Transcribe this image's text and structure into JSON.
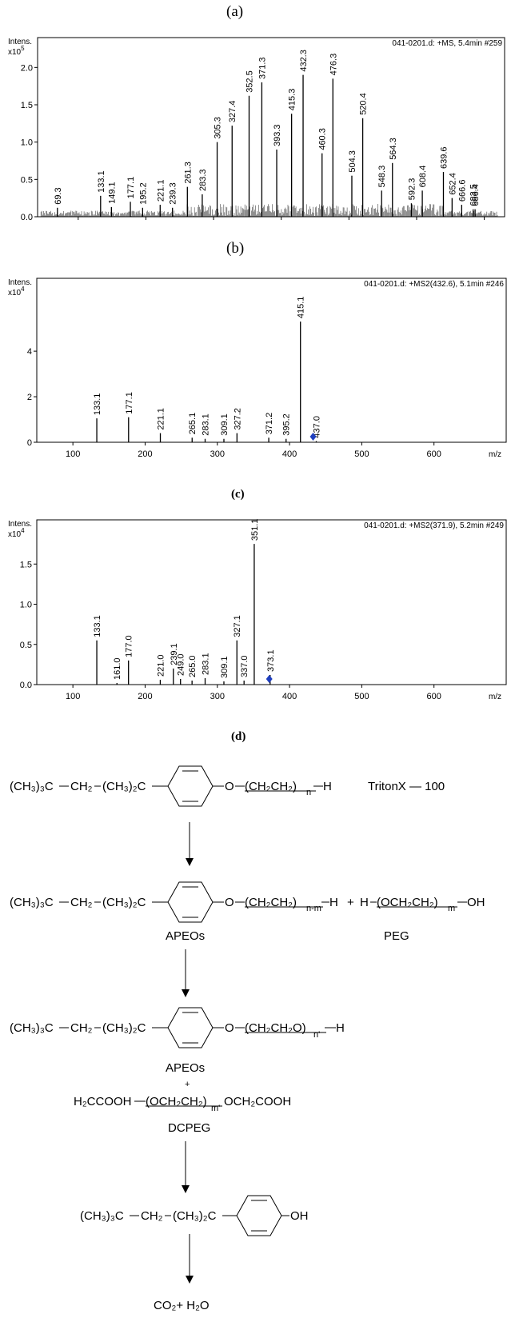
{
  "labels": {
    "a": "(a)",
    "b": "(b)",
    "c": "(c)",
    "d": "(d)"
  },
  "chart_data": [
    {
      "type": "bar",
      "panel": "a",
      "header": "041-0201.d: +MS, 5.4min #259",
      "ylabel": "Intens.",
      "yexp_base": "x10",
      "yexp_power": "5",
      "xlim": [
        40,
        730
      ],
      "ylim": [
        0,
        2.4
      ],
      "yticks": [
        0.0,
        0.5,
        1.0,
        1.5,
        2.0
      ],
      "xtick_values": [
        100,
        200,
        300,
        400,
        500,
        600,
        700
      ],
      "xticks_printed": false,
      "peaks": [
        {
          "mz": 69.3,
          "i": 0.12,
          "label": "69.3"
        },
        {
          "mz": 133.1,
          "i": 0.28,
          "label": "133.1"
        },
        {
          "mz": 149.1,
          "i": 0.13,
          "label": "149.1"
        },
        {
          "mz": 177.1,
          "i": 0.2,
          "label": "177.1"
        },
        {
          "mz": 195.2,
          "i": 0.12,
          "label": "195.2"
        },
        {
          "mz": 221.1,
          "i": 0.16,
          "label": "221.1"
        },
        {
          "mz": 239.3,
          "i": 0.12,
          "label": "239.3"
        },
        {
          "mz": 261.3,
          "i": 0.4,
          "label": "261.3"
        },
        {
          "mz": 283.3,
          "i": 0.3,
          "label": "283.3"
        },
        {
          "mz": 305.3,
          "i": 1.0,
          "label": "305.3"
        },
        {
          "mz": 327.4,
          "i": 1.22,
          "label": "327.4"
        },
        {
          "mz": 352.5,
          "i": 1.62,
          "label": "352.5"
        },
        {
          "mz": 371.3,
          "i": 1.8,
          "label": "371.3"
        },
        {
          "mz": 393.3,
          "i": 0.9,
          "label": "393.3"
        },
        {
          "mz": 415.3,
          "i": 1.38,
          "label": "415.3"
        },
        {
          "mz": 432.3,
          "i": 1.9,
          "label": "432.3"
        },
        {
          "mz": 460.3,
          "i": 0.85,
          "label": "460.3"
        },
        {
          "mz": 476.3,
          "i": 1.85,
          "label": "476.3"
        },
        {
          "mz": 504.3,
          "i": 0.55,
          "label": "504.3"
        },
        {
          "mz": 520.4,
          "i": 1.32,
          "label": "520.4"
        },
        {
          "mz": 548.3,
          "i": 0.35,
          "label": "548.3"
        },
        {
          "mz": 564.3,
          "i": 0.72,
          "label": "564.3"
        },
        {
          "mz": 592.3,
          "i": 0.18,
          "label": "592.3"
        },
        {
          "mz": 608.4,
          "i": 0.35,
          "label": "608.4"
        },
        {
          "mz": 639.6,
          "i": 0.6,
          "label": "639.6"
        },
        {
          "mz": 652.4,
          "i": 0.25,
          "label": "652.4"
        },
        {
          "mz": 666.6,
          "i": 0.16,
          "label": "666.6"
        },
        {
          "mz": 683.5,
          "i": 0.1,
          "label": "683.5"
        },
        {
          "mz": 686.4,
          "i": 0.1,
          "label": "686.4"
        }
      ]
    },
    {
      "type": "bar",
      "panel": "b",
      "header": "041-0201.d: +MS2(432.6), 5.1min #246",
      "ylabel": "Intens.",
      "yexp_base": "x10",
      "yexp_power": "4",
      "xunit": "m/z",
      "xlim": [
        50,
        700
      ],
      "ylim": [
        0,
        7.2
      ],
      "yticks": [
        0,
        2,
        4
      ],
      "xticks": [
        100,
        200,
        300,
        400,
        500,
        600
      ],
      "precursor_mz": 432.6,
      "peaks": [
        {
          "mz": 133.1,
          "i": 1.05,
          "label": "133.1"
        },
        {
          "mz": 177.1,
          "i": 1.1,
          "label": "177.1"
        },
        {
          "mz": 221.1,
          "i": 0.4,
          "label": "221.1"
        },
        {
          "mz": 265.1,
          "i": 0.2,
          "label": "265.1"
        },
        {
          "mz": 283.1,
          "i": 0.15,
          "label": "283.1"
        },
        {
          "mz": 309.1,
          "i": 0.15,
          "label": "309.1"
        },
        {
          "mz": 327.2,
          "i": 0.4,
          "label": "327.2"
        },
        {
          "mz": 371.2,
          "i": 0.2,
          "label": "371.2"
        },
        {
          "mz": 395.2,
          "i": 0.15,
          "label": "395.2"
        },
        {
          "mz": 415.1,
          "i": 5.3,
          "label": "415.1"
        },
        {
          "mz": 437.0,
          "i": 0.05,
          "label": "437.0"
        }
      ]
    },
    {
      "type": "bar",
      "panel": "c",
      "header": "041-0201.d: +MS2(371.9), 5.2min #249",
      "ylabel": "Intens.",
      "yexp_base": "x10",
      "yexp_power": "4",
      "xunit": "m/z",
      "xlim": [
        50,
        700
      ],
      "ylim": [
        0,
        2.05
      ],
      "yticks": [
        0.0,
        0.5,
        1.0,
        1.5
      ],
      "xticks": [
        100,
        200,
        300,
        400,
        500,
        600
      ],
      "precursor_mz": 371.9,
      "peaks": [
        {
          "mz": 133.1,
          "i": 0.55,
          "label": "133.1"
        },
        {
          "mz": 161.0,
          "i": 0.02,
          "label": "161.0"
        },
        {
          "mz": 177.0,
          "i": 0.3,
          "label": "177.0"
        },
        {
          "mz": 221.0,
          "i": 0.06,
          "label": "221.0"
        },
        {
          "mz": 239.1,
          "i": 0.2,
          "label": "239.1"
        },
        {
          "mz": 249.0,
          "i": 0.07,
          "label": "249.0"
        },
        {
          "mz": 265.0,
          "i": 0.05,
          "label": "265.0"
        },
        {
          "mz": 283.1,
          "i": 0.08,
          "label": "283.1"
        },
        {
          "mz": 309.1,
          "i": 0.04,
          "label": "309.1"
        },
        {
          "mz": 327.1,
          "i": 0.55,
          "label": "327.1"
        },
        {
          "mz": 337.0,
          "i": 0.05,
          "label": "337.0"
        },
        {
          "mz": 351.1,
          "i": 1.75,
          "label": "351.1"
        },
        {
          "mz": 373.1,
          "i": 0.12,
          "label": "373.1"
        }
      ]
    }
  ],
  "scheme": {
    "tert_group": "(CH₃)₃C",
    "ch2": "CH₂",
    "dimethyl": "(CH₃)₂C",
    "oxygen": "O",
    "chain_n": "(CH₂CH₂)",
    "sub_n": "n",
    "hydrogen": "H",
    "reagent_name": "TritonX — 100",
    "chain_nm": "(CH₂CH₂)",
    "sub_nm": "n-m",
    "plus": "+",
    "peg_formula_left": "H",
    "peg_chain": "(OCH₂CH₂)",
    "sub_m": "m",
    "peg_formula_right": "OH",
    "apeos_label": "APEOs",
    "peg_label": "PEG",
    "chain_n2": "(CH₂CH₂O)",
    "sub_n2": "n'",
    "dcpeg_left": "H₂CCOOH",
    "dcpeg_chain": "(OCH₂CH₂)",
    "sub_m2": "m'",
    "dcpeg_right": "OCH₂COOH",
    "dcpeg_label": "DCPEG",
    "phenol_oh": "OH",
    "final_products": "CO₂+ H₂O"
  }
}
